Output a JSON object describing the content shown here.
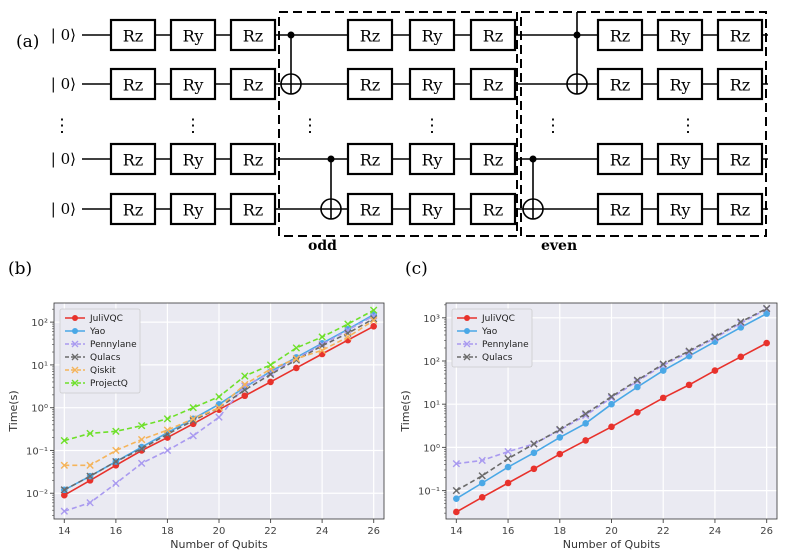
{
  "circuit": {
    "panel_label": "(a)",
    "ket_label": "| 0⟩",
    "gate_rz": "Rz",
    "gate_ry": "Ry",
    "ellipsis": "⋮",
    "odd_label": "odd",
    "even_label": "even"
  },
  "chart_data": [
    {
      "panel_label": "(b)",
      "type": "line",
      "title": "",
      "xlabel": "Number of Qubits",
      "ylabel": "Time(s)",
      "yscale": "log",
      "xlim": [
        13.6,
        26.4
      ],
      "ylim": [
        0.0025,
        280
      ],
      "xticks": [
        14,
        16,
        18,
        20,
        22,
        24,
        26
      ],
      "yticks": [
        0.01,
        0.1,
        1,
        10,
        100
      ],
      "ytick_labels": [
        "10⁻²",
        "10⁻¹",
        "10⁰",
        "10¹",
        "10²"
      ],
      "legend_position": "top-left",
      "x": [
        14,
        15,
        16,
        17,
        18,
        19,
        20,
        21,
        22,
        23,
        24,
        25,
        26
      ],
      "series": [
        {
          "name": "JuliVQC",
          "color": "#e8322c",
          "marker": "o",
          "dash": "solid",
          "values": [
            0.009,
            0.02,
            0.045,
            0.1,
            0.2,
            0.42,
            0.9,
            1.9,
            4.0,
            8.5,
            18,
            38,
            80
          ]
        },
        {
          "name": "Yao",
          "color": "#4aa8e6",
          "marker": "o",
          "dash": "solid",
          "values": [
            0.012,
            0.025,
            0.055,
            0.12,
            0.26,
            0.55,
            1.2,
            3.0,
            7,
            15,
            32,
            68,
            150
          ]
        },
        {
          "name": "Pennylane",
          "color": "#a99af0",
          "marker": "x",
          "dash": "dashed",
          "values": [
            0.0038,
            0.006,
            0.017,
            0.05,
            0.1,
            0.22,
            0.6,
            3.2,
            6.5,
            14,
            30,
            65,
            140
          ]
        },
        {
          "name": "Qulacs",
          "color": "#6b6b6b",
          "marker": "x",
          "dash": "dashed",
          "values": [
            0.012,
            0.025,
            0.055,
            0.11,
            0.24,
            0.5,
            1.0,
            2.6,
            6,
            13,
            28,
            55,
            120
          ]
        },
        {
          "name": "Qiskit",
          "color": "#f5b45a",
          "marker": "x",
          "dash": "dashed",
          "values": [
            0.045,
            0.045,
            0.1,
            0.18,
            0.3,
            0.55,
            1.0,
            3.5,
            8,
            14,
            22,
            45,
            110
          ]
        },
        {
          "name": "ProjectQ",
          "color": "#6ee02a",
          "marker": "x",
          "dash": "dashed",
          "values": [
            0.17,
            0.25,
            0.28,
            0.38,
            0.55,
            1.0,
            1.8,
            5.5,
            10,
            25,
            45,
            90,
            190
          ]
        }
      ]
    },
    {
      "panel_label": "(c)",
      "type": "line",
      "title": "",
      "xlabel": "Number of Qubits",
      "ylabel": "Time(s)",
      "yscale": "log",
      "xlim": [
        13.6,
        26.4
      ],
      "ylim": [
        0.022,
        2200
      ],
      "xticks": [
        14,
        16,
        18,
        20,
        22,
        24,
        26
      ],
      "yticks": [
        0.1,
        1,
        10,
        100,
        1000
      ],
      "ytick_labels": [
        "10⁻¹",
        "10⁰",
        "10¹",
        "10²",
        "10³"
      ],
      "legend_position": "top-left",
      "x": [
        14,
        15,
        16,
        17,
        18,
        19,
        20,
        21,
        22,
        23,
        24,
        25,
        26
      ],
      "series": [
        {
          "name": "JuliVQC",
          "color": "#e8322c",
          "marker": "o",
          "dash": "solid",
          "values": [
            0.032,
            0.07,
            0.15,
            0.32,
            0.7,
            1.45,
            3.0,
            6.5,
            14,
            28,
            60,
            125,
            260
          ]
        },
        {
          "name": "Yao",
          "color": "#4aa8e6",
          "marker": "o",
          "dash": "solid",
          "values": [
            0.065,
            0.15,
            0.35,
            0.75,
            1.7,
            3.6,
            10,
            25,
            60,
            130,
            280,
            600,
            1250
          ]
        },
        {
          "name": "Pennylane",
          "color": "#a99af0",
          "marker": "x",
          "dash": "dashed",
          "values": [
            0.42,
            0.5,
            0.8,
            1.2,
            2.5,
            5.5,
            14,
            34,
            80,
            160,
            340,
            750,
            1600
          ]
        },
        {
          "name": "Qulacs",
          "color": "#6b6b6b",
          "marker": "x",
          "dash": "dashed",
          "values": [
            0.1,
            0.22,
            0.55,
            1.2,
            2.6,
            6.0,
            15,
            36,
            85,
            170,
            360,
            800,
            1650
          ]
        }
      ]
    }
  ]
}
